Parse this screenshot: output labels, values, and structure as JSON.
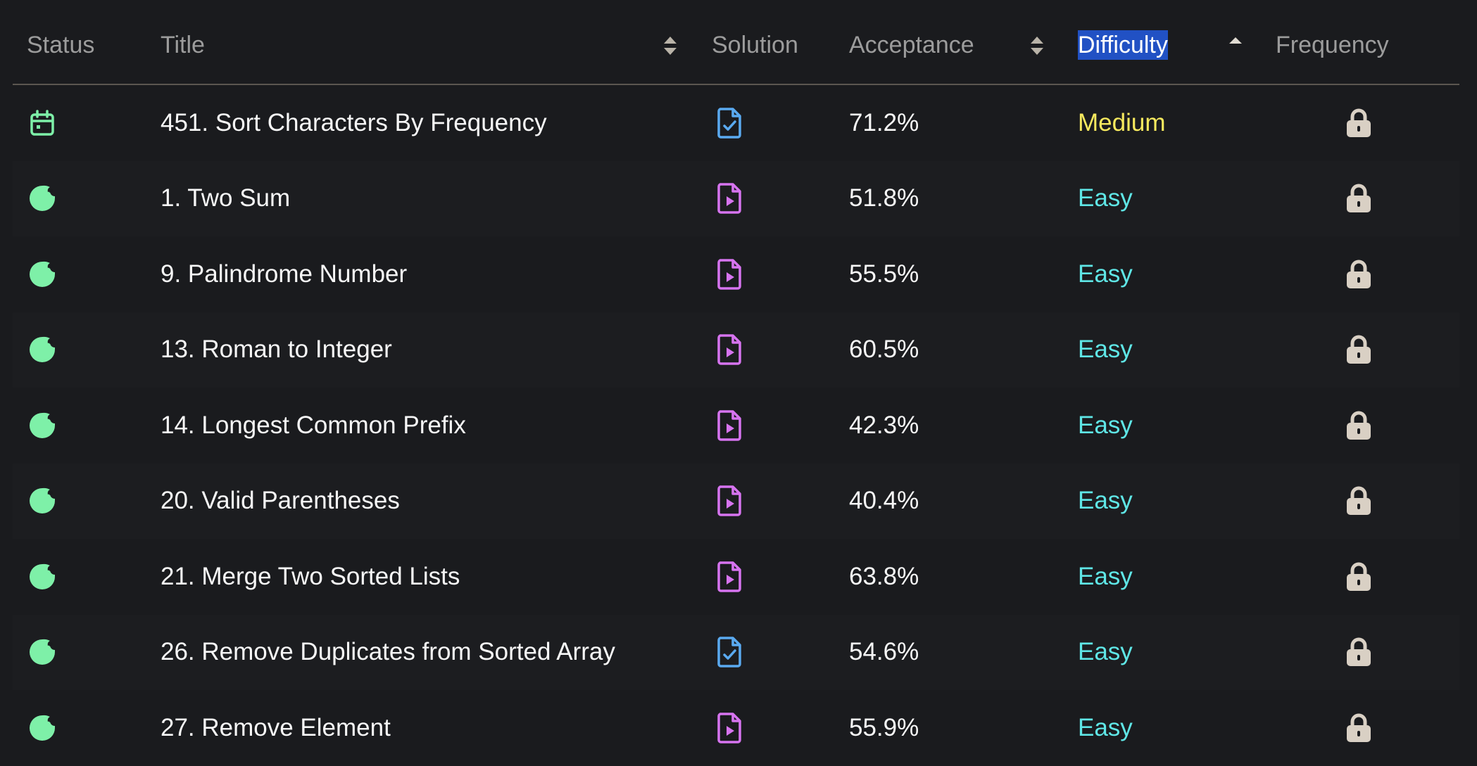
{
  "colors": {
    "background": "#1a1b1e",
    "header_text": "#9c9c9c",
    "highlight": "#2151c4",
    "status_green": "#7ef0a8",
    "solution_video": "#d774f0",
    "solution_article": "#5aaaf0",
    "medium": "#f6e95e",
    "easy": "#5fe6e6",
    "lock": "#d9d0c4"
  },
  "header": {
    "status": "Status",
    "title": "Title",
    "solution": "Solution",
    "acceptance": "Acceptance",
    "difficulty": "Difficulty",
    "frequency": "Frequency"
  },
  "rows": [
    {
      "status_icon": "calendar-icon",
      "title": "451. Sort Characters By Frequency",
      "solution_icon": "document-check-icon",
      "acceptance": "71.2%",
      "difficulty": "Medium",
      "frequency_icon": "lock-icon"
    },
    {
      "status_icon": "solved-circle-icon",
      "title": "1. Two Sum",
      "solution_icon": "document-video-icon",
      "acceptance": "51.8%",
      "difficulty": "Easy",
      "frequency_icon": "lock-icon"
    },
    {
      "status_icon": "solved-circle-icon",
      "title": "9. Palindrome Number",
      "solution_icon": "document-video-icon",
      "acceptance": "55.5%",
      "difficulty": "Easy",
      "frequency_icon": "lock-icon"
    },
    {
      "status_icon": "solved-circle-icon",
      "title": "13. Roman to Integer",
      "solution_icon": "document-video-icon",
      "acceptance": "60.5%",
      "difficulty": "Easy",
      "frequency_icon": "lock-icon"
    },
    {
      "status_icon": "solved-circle-icon",
      "title": "14. Longest Common Prefix",
      "solution_icon": "document-video-icon",
      "acceptance": "42.3%",
      "difficulty": "Easy",
      "frequency_icon": "lock-icon"
    },
    {
      "status_icon": "solved-circle-icon",
      "title": "20. Valid Parentheses",
      "solution_icon": "document-video-icon",
      "acceptance": "40.4%",
      "difficulty": "Easy",
      "frequency_icon": "lock-icon"
    },
    {
      "status_icon": "solved-circle-icon",
      "title": "21. Merge Two Sorted Lists",
      "solution_icon": "document-video-icon",
      "acceptance": "63.8%",
      "difficulty": "Easy",
      "frequency_icon": "lock-icon"
    },
    {
      "status_icon": "solved-circle-icon",
      "title": "26. Remove Duplicates from Sorted Array",
      "solution_icon": "document-check-icon",
      "acceptance": "54.6%",
      "difficulty": "Easy",
      "frequency_icon": "lock-icon"
    },
    {
      "status_icon": "solved-circle-icon",
      "title": "27. Remove Element",
      "solution_icon": "document-video-icon",
      "acceptance": "55.9%",
      "difficulty": "Easy",
      "frequency_icon": "lock-icon"
    }
  ]
}
